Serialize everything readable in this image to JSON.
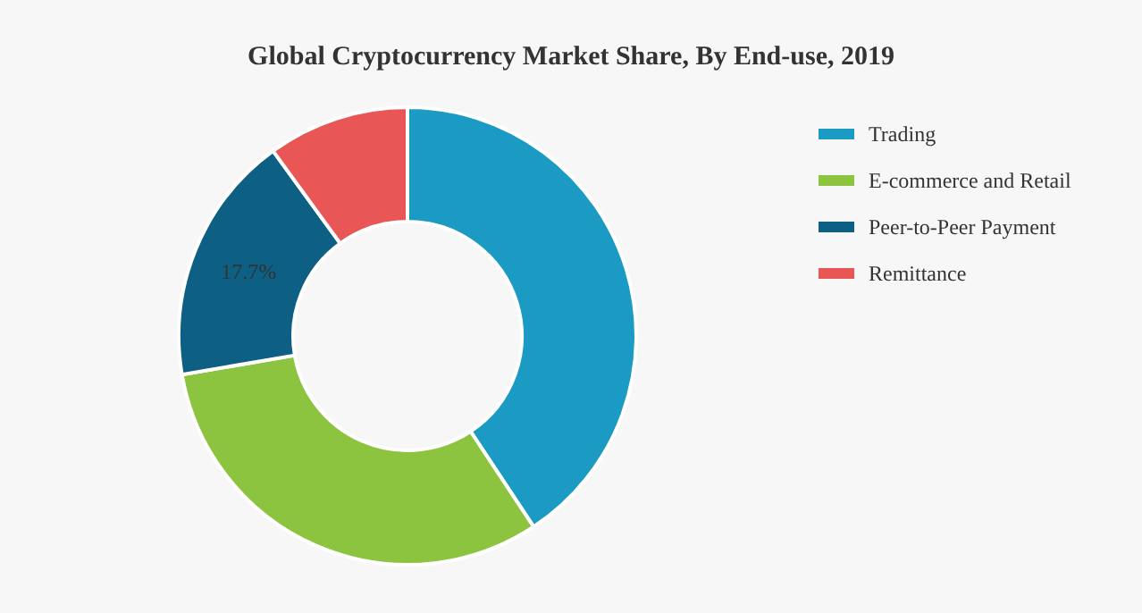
{
  "chart_data": {
    "type": "donut",
    "title": "Global Cryptocurrency Market Share, By End-use, 2019",
    "categories": [
      "Trading",
      "E-commerce and Retail",
      "Peer-to-Peer Payment",
      "Remittance"
    ],
    "values": [
      40.7,
      31.6,
      17.7,
      10.0
    ],
    "colors": [
      "#1b9ac3",
      "#8cc43f",
      "#0e5f84",
      "#e85656"
    ],
    "value_labels": [
      null,
      null,
      "17.7%",
      null
    ],
    "legend": "top right"
  }
}
